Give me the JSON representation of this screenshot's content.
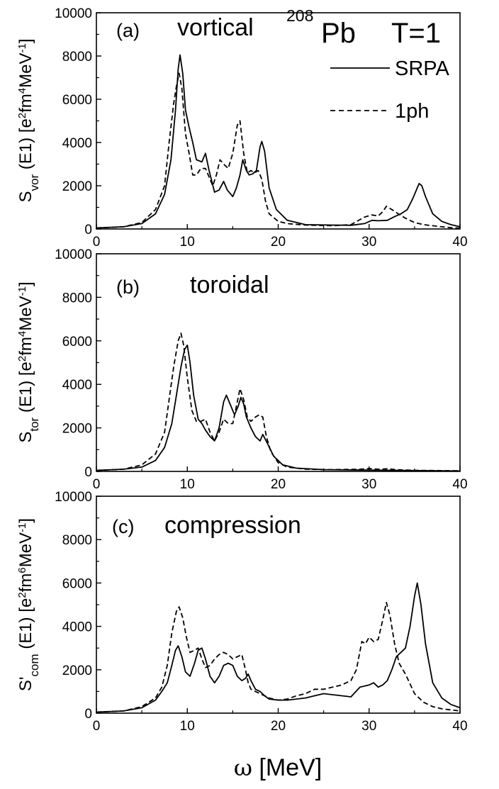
{
  "chart_data": [
    {
      "type": "line",
      "panel_tag": "(a)",
      "panel_title": "vortical",
      "nucleus_mass": "208",
      "nucleus_symbol": "Pb",
      "isospin_label": "T=1",
      "ylabel": {
        "main": "S",
        "sub": "vor",
        "rest": " (E1) [e",
        "e_sup": "2",
        "mid": "fm",
        "fm_sup": "4",
        "mid2": "MeV",
        "mev_sup": "-1",
        "end": "]"
      },
      "xlim": [
        0,
        40
      ],
      "ylim": [
        0,
        10000
      ],
      "xticks": [
        "0",
        "10",
        "20",
        "30",
        "40"
      ],
      "yticks": [
        "0",
        "2000",
        "4000",
        "6000",
        "8000",
        "10000"
      ],
      "legend": [
        {
          "name": "SRPA",
          "style": "solid"
        },
        {
          "name": "1ph",
          "style": "dashed"
        }
      ],
      "series": [
        {
          "name": "SRPA",
          "style": "solid",
          "x": [
            0,
            3,
            5,
            6.5,
            7.5,
            8.2,
            8.7,
            9.0,
            9.2,
            9.5,
            9.8,
            10.2,
            10.6,
            11.0,
            11.6,
            12.0,
            12.4,
            13.0,
            13.5,
            14.0,
            14.4,
            15.0,
            15.4,
            15.8,
            16.1,
            16.5,
            16.8,
            17.2,
            17.6,
            18.0,
            18.2,
            18.5,
            19.0,
            19.8,
            21,
            23,
            26,
            28,
            29.5,
            30.3,
            31.0,
            32.0,
            32.7,
            33.5,
            34.2,
            34.8,
            35.2,
            35.5,
            35.8,
            36.2,
            37,
            38,
            39,
            40
          ],
          "y": [
            50,
            100,
            250,
            700,
            1600,
            3200,
            5500,
            7400,
            8050,
            7200,
            5500,
            4700,
            4000,
            3200,
            3100,
            3500,
            2700,
            1700,
            1800,
            2200,
            1800,
            1500,
            1900,
            2500,
            3200,
            2700,
            2500,
            2550,
            2700,
            3800,
            4050,
            3600,
            1900,
            900,
            400,
            200,
            180,
            170,
            250,
            400,
            380,
            400,
            550,
            700,
            900,
            1400,
            1800,
            2100,
            2000,
            1500,
            700,
            350,
            200,
            100
          ]
        },
        {
          "name": "1ph",
          "style": "dashed",
          "x": [
            0,
            3,
            5,
            6.5,
            7.5,
            8.0,
            8.5,
            8.8,
            9.1,
            9.4,
            9.8,
            10.2,
            10.6,
            11.0,
            11.5,
            12.0,
            12.4,
            12.8,
            13.2,
            13.6,
            14.0,
            14.5,
            15.0,
            15.5,
            15.8,
            16.2,
            16.6,
            17.0,
            17.4,
            17.8,
            18.2,
            18.6,
            19.0,
            20.0,
            21,
            23,
            26,
            28,
            29.5,
            30.3,
            31.0,
            31.5,
            31.9,
            32.5,
            33.2,
            34.0,
            35.0,
            36,
            37,
            38,
            39,
            40
          ],
          "y": [
            50,
            100,
            300,
            900,
            2000,
            4000,
            5800,
            6600,
            7200,
            6500,
            4400,
            3500,
            2500,
            2500,
            2800,
            2800,
            2400,
            2000,
            2500,
            3200,
            3000,
            2800,
            3500,
            4800,
            5000,
            3500,
            2600,
            2700,
            2600,
            2700,
            2300,
            1300,
            700,
            350,
            250,
            180,
            150,
            200,
            550,
            650,
            600,
            800,
            1050,
            900,
            700,
            500,
            300,
            200,
            150,
            100,
            60,
            40
          ]
        }
      ]
    },
    {
      "type": "line",
      "panel_tag": "(b)",
      "panel_title": "toroidal",
      "ylabel": {
        "main": "S",
        "sub": "tor",
        "rest": " (E1) [e",
        "e_sup": "2",
        "mid": "fm",
        "fm_sup": "4",
        "mid2": "MeV",
        "mev_sup": "-1",
        "end": "]"
      },
      "xlim": [
        0,
        40
      ],
      "ylim": [
        0,
        10000
      ],
      "xticks": [
        "0",
        "10",
        "20",
        "30",
        "40"
      ],
      "yticks": [
        "0",
        "2000",
        "4000",
        "6000",
        "8000",
        "10000"
      ],
      "series": [
        {
          "name": "SRPA",
          "style": "solid",
          "x": [
            0,
            3,
            5,
            6.5,
            7.5,
            8.3,
            8.8,
            9.3,
            9.7,
            10.0,
            10.3,
            10.7,
            11.2,
            11.6,
            12.0,
            12.5,
            13.0,
            13.5,
            14.0,
            14.3,
            14.8,
            15.2,
            15.6,
            15.9,
            16.2,
            16.5,
            17.0,
            17.5,
            18.0,
            18.3,
            18.8,
            19.5,
            20.5,
            22,
            25,
            30,
            35,
            40
          ],
          "y": [
            50,
            100,
            200,
            500,
            1100,
            2200,
            3500,
            4800,
            5600,
            5800,
            5000,
            3500,
            2400,
            2200,
            1900,
            1600,
            1400,
            2000,
            3200,
            3500,
            3000,
            2600,
            3000,
            3400,
            3100,
            2500,
            2000,
            1600,
            1400,
            1700,
            1300,
            700,
            300,
            150,
            80,
            60,
            40,
            20
          ]
        },
        {
          "name": "1ph",
          "style": "dashed",
          "x": [
            0,
            3,
            5,
            6.5,
            7.5,
            8.0,
            8.5,
            9.0,
            9.3,
            9.6,
            10.0,
            10.5,
            11.0,
            11.5,
            12.0,
            12.5,
            13.0,
            13.5,
            14.0,
            14.5,
            15.0,
            15.5,
            15.8,
            16.2,
            16.6,
            17.0,
            17.5,
            17.9,
            18.3,
            18.7,
            19.2,
            20.0,
            21,
            23,
            26,
            29,
            30,
            31,
            32,
            33,
            35,
            40
          ],
          "y": [
            50,
            100,
            300,
            800,
            1800,
            3300,
            4800,
            6000,
            6350,
            5800,
            4300,
            2800,
            2300,
            2300,
            2400,
            1800,
            1400,
            1800,
            2400,
            2200,
            2200,
            3200,
            3800,
            3300,
            2500,
            2300,
            2500,
            2600,
            2500,
            1600,
            900,
            400,
            200,
            100,
            80,
            100,
            130,
            100,
            120,
            80,
            50,
            30
          ]
        }
      ]
    },
    {
      "type": "line",
      "panel_tag": "(c)",
      "panel_title": "compression",
      "ylabel": {
        "main": "S'",
        "sub": "com",
        "rest": " (E1) [e",
        "e_sup": "2",
        "mid": "fm",
        "fm_sup": "6",
        "mid2": "MeV",
        "mev_sup": "-1",
        "end": "]"
      },
      "xlabel": {
        "symbol": "ω",
        "units": " [MeV]"
      },
      "xlim": [
        0,
        40
      ],
      "ylim": [
        0,
        10000
      ],
      "xticks": [
        "0",
        "10",
        "20",
        "30",
        "40"
      ],
      "yticks": [
        "0",
        "2000",
        "4000",
        "6000",
        "8000",
        "10000"
      ],
      "series": [
        {
          "name": "SRPA",
          "style": "solid",
          "x": [
            0,
            3,
            5,
            6.5,
            7.2,
            7.8,
            8.3,
            8.7,
            9.0,
            9.4,
            9.8,
            10.3,
            10.8,
            11.2,
            11.6,
            12.0,
            12.5,
            13.0,
            13.5,
            14.0,
            14.5,
            15.0,
            15.5,
            16.0,
            16.4,
            16.7,
            17.0,
            17.5,
            18.0,
            18.5,
            19.0,
            20.0,
            21,
            22,
            23,
            24,
            25,
            26,
            27,
            28,
            29,
            30,
            30.5,
            31,
            31.5,
            32,
            32.5,
            33,
            33.5,
            34.0,
            34.5,
            35.0,
            35.3,
            35.7,
            36.2,
            37,
            38,
            39,
            40
          ],
          "y": [
            50,
            100,
            250,
            600,
            1000,
            1400,
            2200,
            2900,
            3100,
            2600,
            1900,
            1700,
            2300,
            2900,
            3000,
            2500,
            1700,
            1400,
            1700,
            2200,
            2300,
            2200,
            1700,
            1500,
            1600,
            1800,
            1500,
            1100,
            1000,
            800,
            650,
            600,
            600,
            650,
            700,
            800,
            900,
            850,
            800,
            750,
            1200,
            1300,
            1400,
            1200,
            1300,
            1500,
            2000,
            2600,
            2800,
            3000,
            4000,
            5400,
            6000,
            5000,
            3200,
            1400,
            700,
            400,
            250
          ]
        },
        {
          "name": "1ph",
          "style": "dashed",
          "x": [
            0,
            3,
            5,
            6.5,
            7.2,
            7.8,
            8.3,
            8.8,
            9.1,
            9.5,
            9.9,
            10.3,
            10.8,
            11.2,
            11.6,
            12.0,
            12.5,
            13.0,
            13.5,
            14.0,
            14.5,
            15.0,
            15.5,
            16.0,
            16.4,
            16.7,
            17.0,
            17.5,
            18.0,
            18.5,
            19.0,
            20.0,
            21,
            22,
            23,
            24,
            25,
            26,
            27,
            28,
            28.6,
            29.2,
            29.6,
            30.0,
            30.5,
            31.0,
            31.5,
            31.9,
            32.3,
            32.8,
            33.3,
            34.0,
            35.0,
            36,
            37,
            38,
            40
          ],
          "y": [
            50,
            100,
            300,
            700,
            1200,
            2200,
            3700,
            4700,
            4900,
            4400,
            3500,
            2800,
            2900,
            3000,
            2500,
            2100,
            2200,
            2500,
            2700,
            2800,
            2700,
            2500,
            2600,
            2700,
            2000,
            1400,
            1100,
            1000,
            900,
            800,
            700,
            600,
            650,
            800,
            900,
            1100,
            1100,
            1200,
            1300,
            1500,
            2000,
            3300,
            3200,
            3500,
            3300,
            3400,
            4300,
            5100,
            4500,
            3200,
            2300,
            1800,
            900,
            500,
            300,
            200,
            100
          ]
        }
      ]
    }
  ]
}
